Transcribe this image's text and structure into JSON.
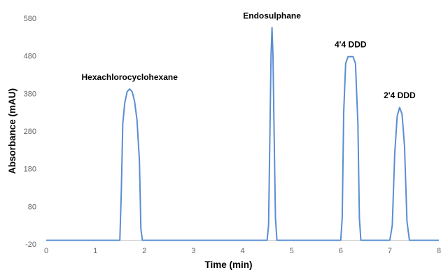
{
  "chart_data": {
    "type": "line",
    "xlabel": "Time (min)",
    "ylabel": "Absorbance (mAU)",
    "xlim": [
      0,
      8
    ],
    "ylim": [
      -20,
      580
    ],
    "x_ticks": [
      0,
      1,
      2,
      3,
      4,
      5,
      6,
      7,
      8
    ],
    "y_ticks": [
      -20,
      80,
      180,
      280,
      380,
      480,
      580
    ],
    "grid": false,
    "legend": "none",
    "line_color": "#5b8ed1",
    "baseline": -10,
    "series": [
      {
        "values_desc": "chromatogram",
        "x": [
          0,
          1.5,
          1.53,
          1.56,
          1.6,
          1.65,
          1.7,
          1.75,
          1.8,
          1.85,
          1.9,
          1.93,
          1.96,
          2.0,
          4.5,
          4.53,
          4.56,
          4.58,
          4.6,
          4.62,
          4.64,
          4.67,
          4.7,
          4.73,
          6.0,
          6.03,
          6.06,
          6.1,
          6.15,
          6.2,
          6.25,
          6.3,
          6.35,
          6.38,
          6.41,
          6.45,
          7.0,
          7.05,
          7.1,
          7.15,
          7.2,
          7.25,
          7.3,
          7.35,
          7.4,
          7.45,
          8.0
        ],
        "y": [
          -10,
          -10,
          120,
          300,
          355,
          385,
          392,
          385,
          360,
          310,
          200,
          20,
          -10,
          -10,
          -10,
          30,
          300,
          480,
          555,
          480,
          300,
          50,
          -10,
          -10,
          -10,
          50,
          330,
          460,
          478,
          478,
          478,
          460,
          300,
          50,
          -10,
          -10,
          -10,
          30,
          220,
          320,
          343,
          325,
          240,
          40,
          -10,
          -10,
          -10
        ]
      }
    ],
    "annotations": [
      {
        "text": "Hexachlorocyclohexane",
        "x": 1.7,
        "y": 392
      },
      {
        "text": "Endosulphane",
        "x": 4.6,
        "y": 555
      },
      {
        "text": "4'4 DDD",
        "x": 6.2,
        "y": 478
      },
      {
        "text": "2'4 DDD",
        "x": 7.2,
        "y": 343
      }
    ]
  }
}
